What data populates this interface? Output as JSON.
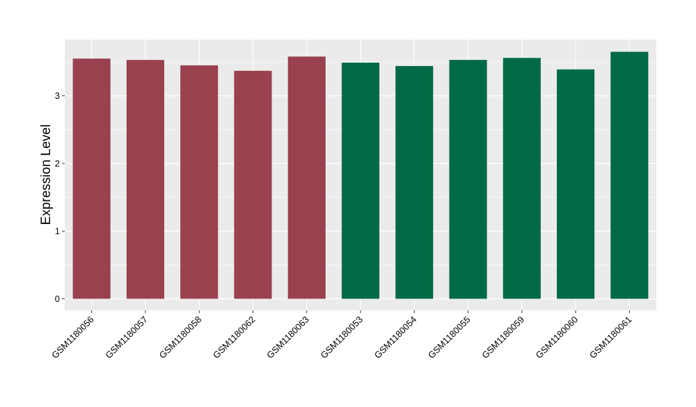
{
  "chart_data": {
    "type": "bar",
    "title": "",
    "xlabel": "",
    "ylabel": "Expression Level",
    "categories": [
      "GSM1180056",
      "GSM1180057",
      "GSM1180058",
      "GSM1180062",
      "GSM1180063",
      "GSM1180053",
      "GSM1180054",
      "GSM1180055",
      "GSM1180059",
      "GSM1180060",
      "GSM1180061"
    ],
    "values": [
      3.55,
      3.53,
      3.45,
      3.37,
      3.58,
      3.49,
      3.44,
      3.53,
      3.56,
      3.39,
      3.65
    ],
    "groups": [
      0,
      0,
      0,
      0,
      0,
      1,
      1,
      1,
      1,
      1,
      1
    ],
    "group_colors": [
      "#99414f",
      "#006a44"
    ],
    "ylim": [
      -0.17,
      3.83
    ],
    "yticks": [
      0,
      1,
      2,
      3
    ],
    "grid": true,
    "panel_background": "#ebebeb",
    "gridline_color": "#ffffff"
  }
}
